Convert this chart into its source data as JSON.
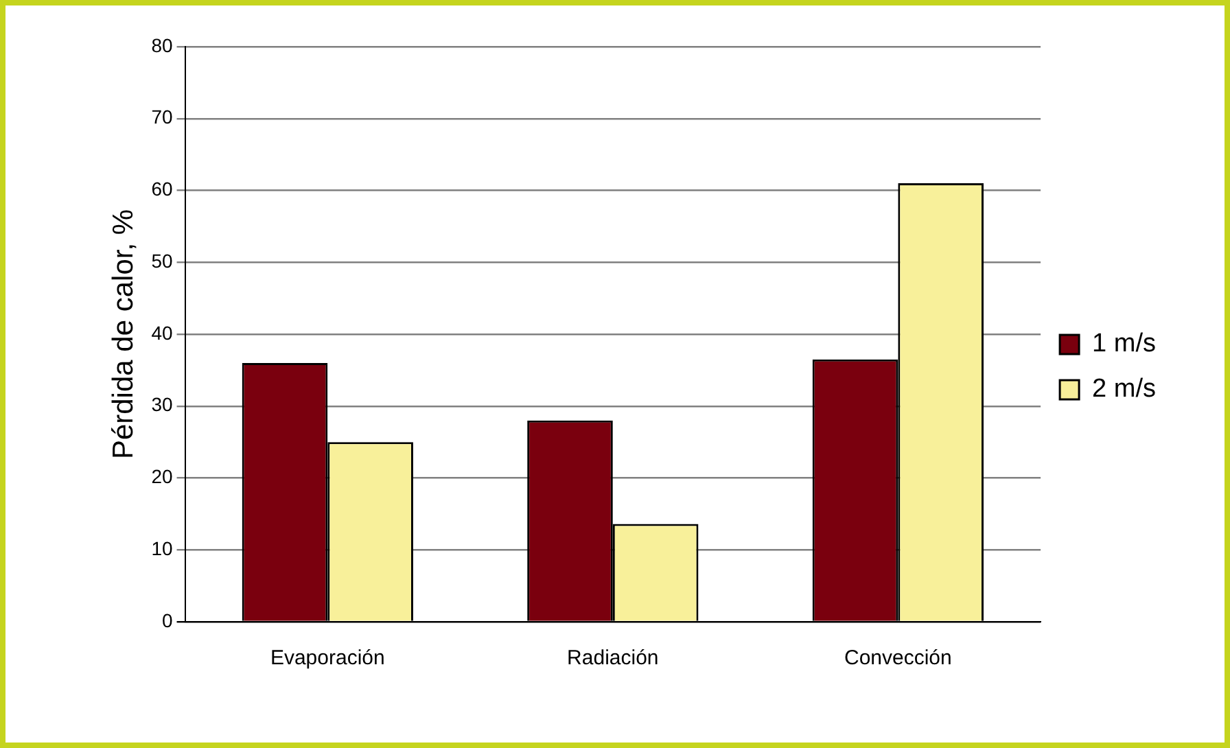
{
  "chart_data": {
    "type": "bar",
    "ylabel": "Pérdida de calor, %",
    "categories": [
      "Evaporación",
      "Radiación",
      "Convección"
    ],
    "series": [
      {
        "name": "1 m/s",
        "color": "#7a000e",
        "values": [
          36,
          28,
          36.5
        ]
      },
      {
        "name": "2 m/s",
        "color": "#f8f09a",
        "values": [
          25,
          13.6,
          61
        ]
      }
    ],
    "ylim": [
      0,
      80
    ],
    "yticks": [
      0,
      10,
      20,
      30,
      40,
      50,
      60,
      70,
      80
    ],
    "grid": "y",
    "legend": "right"
  }
}
